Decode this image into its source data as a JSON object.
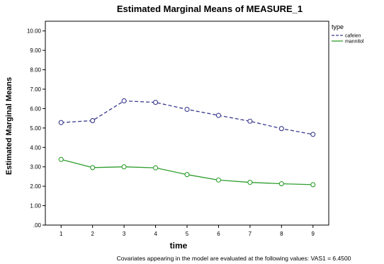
{
  "chart_data": {
    "type": "line",
    "title": "Estimated Marginal Means of MEASURE_1",
    "xlabel": "time",
    "ylabel": "Estimated Marginal Means",
    "x": [
      1,
      2,
      3,
      4,
      5,
      6,
      7,
      8,
      9
    ],
    "y_ticks": [
      ".00",
      "1.00",
      "2.00",
      "3.00",
      "4.00",
      "5.00",
      "6.00",
      "7.00",
      "8.00",
      "9.00",
      "10.00"
    ],
    "ylim": [
      0,
      10.5
    ],
    "grid": false,
    "legend": {
      "title": "type",
      "position": "top-right"
    },
    "series": [
      {
        "name": "cafeien",
        "color": "#3a3a8c",
        "dash": true,
        "values": [
          5.28,
          5.38,
          6.4,
          6.32,
          5.96,
          5.65,
          5.35,
          4.97,
          4.67
        ]
      },
      {
        "name": "mannitol",
        "color": "#2e9e2e",
        "dash": false,
        "values": [
          3.38,
          2.96,
          3.0,
          2.95,
          2.6,
          2.32,
          2.2,
          2.13,
          2.08
        ]
      }
    ],
    "footnote": "Covariates appearing in the model are evaluated at the following values: VAS1 = 6.4500"
  }
}
